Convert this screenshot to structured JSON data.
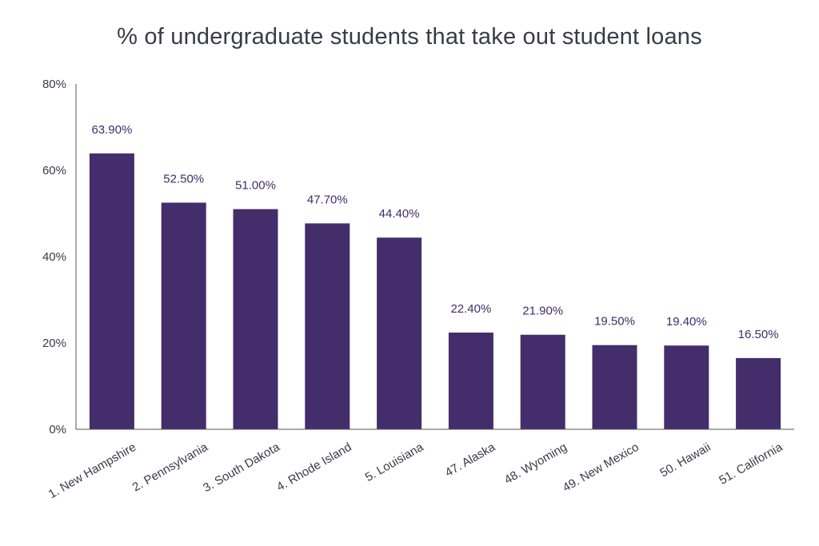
{
  "chart_data": {
    "type": "bar",
    "title": "% of undergraduate students that take out student loans",
    "xlabel": "",
    "ylabel": "",
    "categories": [
      "1. New Hampshire",
      "2. Pennsylvania",
      "3. South Dakota",
      "4. Rhode Island",
      "5. Louisiana",
      "47. Alaska",
      "48. Wyoming",
      "49. New Mexico",
      "50. Hawaii",
      "51. California"
    ],
    "values": [
      63.9,
      52.5,
      51.0,
      47.7,
      44.4,
      22.4,
      21.9,
      19.5,
      19.4,
      16.5
    ],
    "data_labels": [
      "63.90%",
      "52.50%",
      "51.00%",
      "47.70%",
      "44.40%",
      "22.40%",
      "21.90%",
      "19.50%",
      "19.40%",
      "16.50%"
    ],
    "ylim": [
      0,
      80
    ],
    "yticks": [
      0,
      20,
      40,
      60,
      80
    ],
    "ytick_labels": [
      "0%",
      "20%",
      "40%",
      "60%",
      "80%"
    ],
    "grid": false,
    "legend": "none",
    "bar_color": "#432d6b"
  }
}
